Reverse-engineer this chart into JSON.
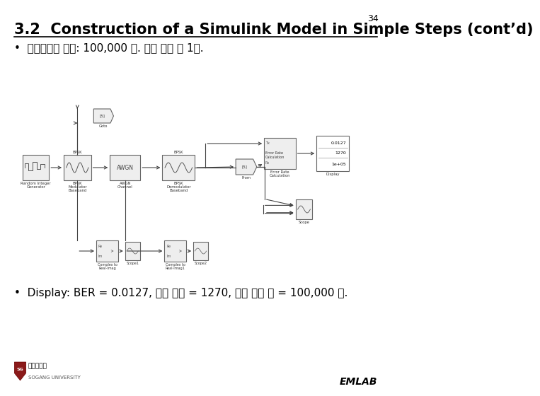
{
  "page_number": "34",
  "title": "3.2  Construction of a Simulink Model in Simple Steps (cont’d)",
  "bullet1": "•  시뮬레이션 시간: 100,000 초. 초당 심볼 수 1개.",
  "bullet2": "•  Display: BER = 0.0127, 에러 개수 = 1270, 전체 심볼 수 = 100,000 개.",
  "background_color": "#ffffff",
  "title_color": "#000000",
  "text_color": "#000000",
  "accent_color": "#8B1A1A",
  "emlab_text": "EMLAB",
  "university_name": "서강대학교",
  "university_english": "SOGANG UNIVERSITY",
  "title_fontsize": 15,
  "body_fontsize": 11,
  "page_num_fontsize": 9,
  "diagram_bg": "#f5f5f5",
  "block_edge": "#666666",
  "block_face": "#eeeeee"
}
